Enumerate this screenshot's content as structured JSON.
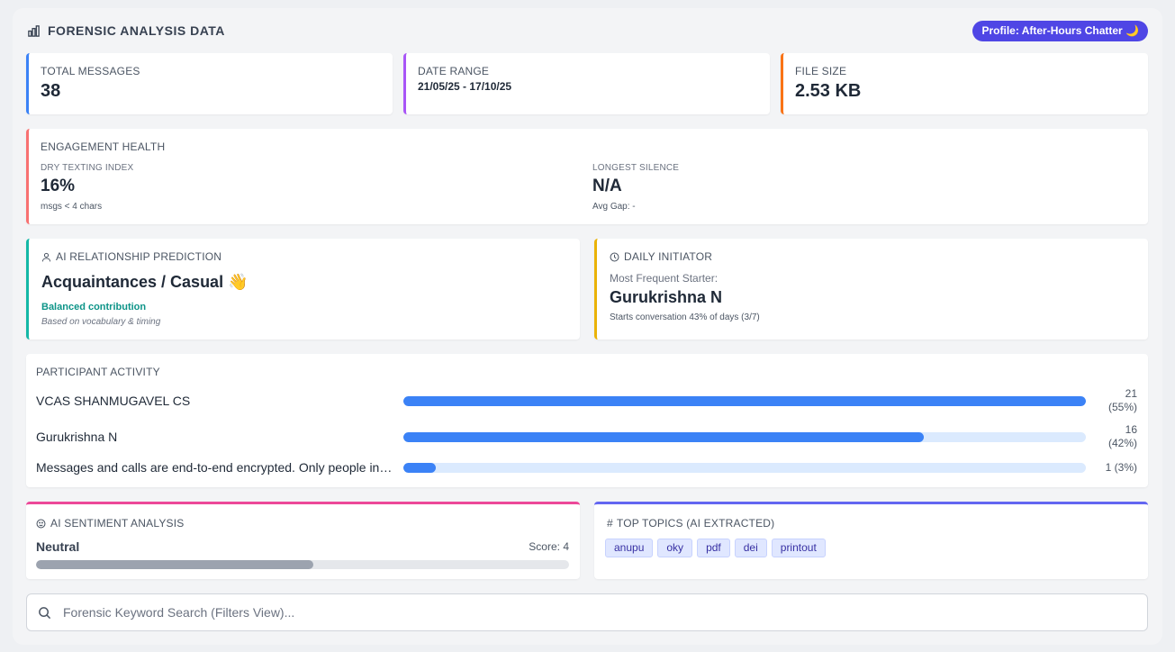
{
  "header": {
    "title": "FORENSIC ANALYSIS DATA",
    "profile_badge": "Profile: After-Hours Chatter 🌙"
  },
  "stats": {
    "total_messages": {
      "label": "TOTAL MESSAGES",
      "value": "38"
    },
    "date_range": {
      "label": "DATE RANGE",
      "value": "21/05/25 - 17/10/25"
    },
    "file_size": {
      "label": "FILE SIZE",
      "value": "2.53 KB"
    }
  },
  "engagement": {
    "title": "ENGAGEMENT HEALTH",
    "dry_texting": {
      "label": "DRY TEXTING INDEX",
      "value": "16%",
      "note": "msgs < 4 chars"
    },
    "longest_silence": {
      "label": "LONGEST SILENCE",
      "value": "N/A",
      "note": "Avg Gap: -"
    }
  },
  "prediction": {
    "title": "AI RELATIONSHIP PREDICTION",
    "value": "Acquaintances / Casual 👋",
    "contribution": "Balanced contribution",
    "basis": "Based on vocabulary & timing"
  },
  "initiator": {
    "title": "DAILY INITIATOR",
    "subtitle": "Most Frequent Starter:",
    "name": "Gurukrishna N",
    "note": "Starts conversation 43% of days (3/7)"
  },
  "activity": {
    "title": "PARTICIPANT ACTIVITY",
    "rows": [
      {
        "name": "VCAS SHANMUGAVEL CS",
        "count": "21",
        "pct": "(55%)",
        "fraction": 1.0
      },
      {
        "name": "Gurukrishna N",
        "count": "16",
        "pct": "(42%)",
        "fraction": 0.762
      },
      {
        "name": "Messages and calls are end-to-end encrypted. Only people in this chat can read, listen to, or share them.",
        "count": "1",
        "pct": "(3%)",
        "fraction": 0.048
      }
    ]
  },
  "sentiment": {
    "title": "AI SENTIMENT ANALYSIS",
    "label": "Neutral",
    "score": "Score: 4",
    "fraction": 0.52
  },
  "topics": {
    "title": "TOP TOPICS (AI EXTRACTED)",
    "tags": [
      "anupu",
      "oky",
      "pdf",
      "dei",
      "printout"
    ]
  },
  "search": {
    "placeholder": "Forensic Keyword Search (Filters View)..."
  },
  "colors": {
    "accent": "#4f46e5",
    "bar_fill": "#3b82f6",
    "bar_track": "#dbeafe",
    "contribution_text": "#0d9488"
  },
  "icons": [
    "bar-chart-icon",
    "user-icon",
    "clock-icon",
    "smile-icon",
    "hash-icon",
    "search-icon",
    "moon-icon",
    "waving-hand-icon"
  ]
}
